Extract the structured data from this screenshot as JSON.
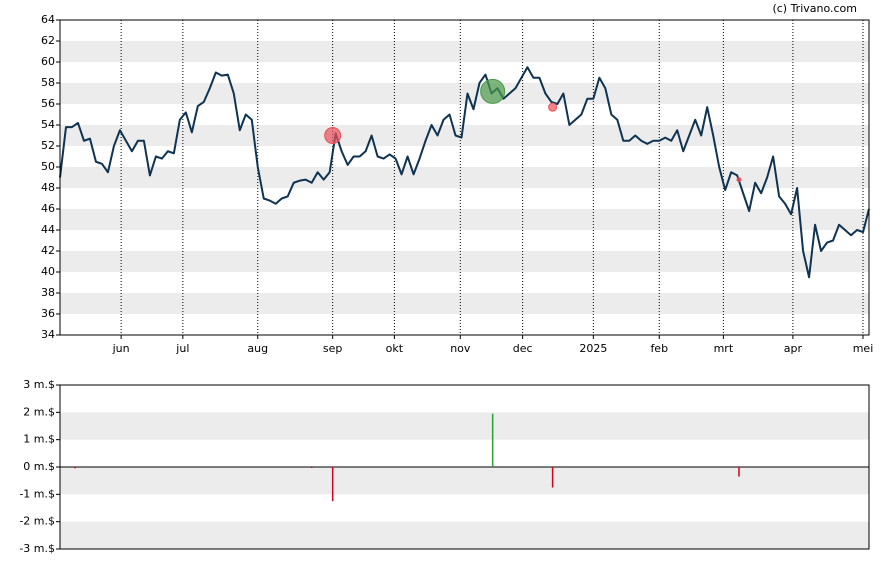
{
  "credit": "(c) Trivano.com",
  "chart_data": [
    {
      "type": "line",
      "color": "#0f3350",
      "values": [
        49,
        53.8,
        53.8,
        54.2,
        52.5,
        52.7,
        50.5,
        50.3,
        49.5,
        52,
        53.5,
        52.5,
        51.5,
        52.5,
        52.5,
        49.2,
        51,
        50.8,
        51.5,
        51.3,
        54.5,
        55.2,
        53.3,
        55.8,
        56.2,
        57.5,
        59,
        58.7,
        58.8,
        57,
        53.5,
        55,
        54.5,
        50,
        47,
        46.8,
        46.5,
        47,
        47.2,
        48.5,
        48.7,
        48.8,
        48.5,
        49.5,
        48.8,
        49.5,
        53.2,
        51.5,
        50.2,
        51,
        51,
        51.5,
        53,
        51,
        50.8,
        51.2,
        50.8,
        49.3,
        51,
        49.3,
        50.8,
        52.5,
        54,
        53,
        54.5,
        55,
        53,
        52.8,
        57,
        55.5,
        58,
        58.8,
        57,
        57.5,
        56.5,
        57,
        57.5,
        58.5,
        59.5,
        58.5,
        58.5,
        57,
        56.2,
        56,
        57,
        54,
        54.5,
        55,
        56.5,
        56.5,
        58.5,
        57.5,
        55,
        54.5,
        52.5,
        52.5,
        53,
        52.5,
        52.2,
        52.5,
        52.5,
        52.8,
        52.5,
        53.5,
        51.5,
        53,
        54.5,
        53,
        55.7,
        53,
        50,
        47.8,
        49.5,
        49.2,
        47.5,
        45.8,
        48.5,
        47.5,
        49,
        51,
        47.2,
        46.5,
        45.5,
        48,
        42,
        39.5,
        44.5,
        42,
        42.8,
        43,
        44.5,
        44,
        43.5,
        44,
        43.8,
        46
      ],
      "xlim": [
        0,
        135
      ],
      "xticks": [
        {
          "value": 10.2,
          "label": "jun"
        },
        {
          "value": 20.5,
          "label": "jul"
        },
        {
          "value": 33,
          "label": "aug"
        },
        {
          "value": 45.5,
          "label": "sep"
        },
        {
          "value": 55.8,
          "label": "okt"
        },
        {
          "value": 66.8,
          "label": "nov"
        },
        {
          "value": 77.2,
          "label": "dec"
        },
        {
          "value": 89,
          "label": "2025"
        },
        {
          "value": 100,
          "label": "feb"
        },
        {
          "value": 110.7,
          "label": "mrt"
        },
        {
          "value": 122.3,
          "label": "apr"
        },
        {
          "value": 134,
          "label": "mei"
        }
      ],
      "ylim": [
        34,
        64
      ],
      "yticks": [
        34,
        36,
        38,
        40,
        42,
        44,
        46,
        48,
        50,
        52,
        54,
        56,
        58,
        60,
        62,
        64
      ],
      "markers": [
        {
          "x": 45.5,
          "y": 53,
          "size": 8,
          "color": "#e8505b"
        },
        {
          "x": 72.2,
          "y": 57.2,
          "size": 12,
          "color": "#4a9a4a"
        },
        {
          "x": 82.2,
          "y": 55.7,
          "size": 4,
          "color": "#e8505b"
        },
        {
          "x": 113.3,
          "y": 48.8,
          "size": 2,
          "color": "#e8505b"
        }
      ]
    },
    {
      "type": "bar",
      "x": [
        2.5,
        42,
        45.5,
        72.2,
        82.2,
        113.3
      ],
      "values": [
        -0.05,
        -0.03,
        -1.25,
        1.95,
        -0.75,
        -0.35
      ],
      "colors": [
        "#d0021b",
        "#d0021b",
        "#d0021b",
        "#2e9a3c",
        "#d0021b",
        "#d0021b"
      ],
      "xlim": [
        0,
        135
      ],
      "ylim": [
        -3,
        3
      ],
      "yticks": [
        {
          "value": -3,
          "label": "-3 m.$"
        },
        {
          "value": -2,
          "label": "-2 m.$"
        },
        {
          "value": -1,
          "label": "-1 m.$"
        },
        {
          "value": 0,
          "label": "0 m.$"
        },
        {
          "value": 1,
          "label": "1 m.$"
        },
        {
          "value": 2,
          "label": "2 m.$"
        },
        {
          "value": 3,
          "label": "3 m.$"
        }
      ]
    }
  ]
}
